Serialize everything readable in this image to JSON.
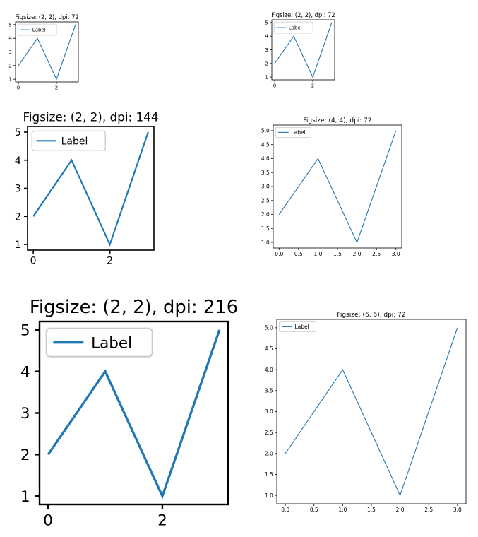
{
  "page": {
    "background": "#ffffff"
  },
  "style": {
    "line_color": "#1f77b4",
    "axes_color": "#000000",
    "legend_border": "#cccccc"
  },
  "chart_data": [
    {
      "type": "line",
      "title": "Figsize: (2, 2), dpi: 72",
      "x": [
        0,
        1,
        2,
        3
      ],
      "series": [
        {
          "name": "Label",
          "values": [
            2,
            4,
            1,
            5
          ]
        }
      ],
      "xticks": [
        "0",
        "2"
      ],
      "yticks": [
        "1",
        "2",
        "3",
        "4",
        "5"
      ],
      "legend": "upper-left"
    },
    {
      "type": "line",
      "title": "Figsize: (2, 2), dpi: 72",
      "x": [
        0,
        1,
        2,
        3
      ],
      "series": [
        {
          "name": "Label",
          "values": [
            2,
            4,
            1,
            5
          ]
        }
      ],
      "xticks": [
        "0",
        "2"
      ],
      "yticks": [
        "1",
        "2",
        "3",
        "4",
        "5"
      ],
      "legend": "upper-left"
    },
    {
      "type": "line",
      "title": "Figsize: (2, 2), dpi: 144",
      "x": [
        0,
        1,
        2,
        3
      ],
      "series": [
        {
          "name": "Label",
          "values": [
            2,
            4,
            1,
            5
          ]
        }
      ],
      "xticks": [
        "0",
        "2"
      ],
      "yticks": [
        "1",
        "2",
        "3",
        "4",
        "5"
      ],
      "legend": "upper-left"
    },
    {
      "type": "line",
      "title": "Figsize: (4, 4), dpi: 72",
      "x": [
        0,
        1,
        2,
        3
      ],
      "series": [
        {
          "name": "Label",
          "values": [
            2,
            4,
            1,
            5
          ]
        }
      ],
      "xticks": [
        "0.0",
        "0.5",
        "1.0",
        "1.5",
        "2.0",
        "2.5",
        "3.0"
      ],
      "yticks": [
        "1.0",
        "1.5",
        "2.0",
        "2.5",
        "3.0",
        "3.5",
        "4.0",
        "4.5",
        "5.0"
      ],
      "legend": "upper-left"
    },
    {
      "type": "line",
      "title": "Figsize: (2, 2), dpi: 216",
      "x": [
        0,
        1,
        2,
        3
      ],
      "series": [
        {
          "name": "Label",
          "values": [
            2,
            4,
            1,
            5
          ]
        }
      ],
      "xticks": [
        "0",
        "2"
      ],
      "yticks": [
        "1",
        "2",
        "3",
        "4",
        "5"
      ],
      "legend": "upper-left"
    },
    {
      "type": "line",
      "title": "Figsize: (6, 6), dpi: 72",
      "x": [
        0,
        1,
        2,
        3
      ],
      "series": [
        {
          "name": "Label",
          "values": [
            2,
            4,
            1,
            5
          ]
        }
      ],
      "xticks": [
        "0.0",
        "0.5",
        "1.0",
        "1.5",
        "2.0",
        "2.5",
        "3.0"
      ],
      "yticks": [
        "1.0",
        "1.5",
        "2.0",
        "2.5",
        "3.0",
        "3.5",
        "4.0",
        "4.5",
        "5.0"
      ],
      "legend": "upper-left"
    }
  ]
}
